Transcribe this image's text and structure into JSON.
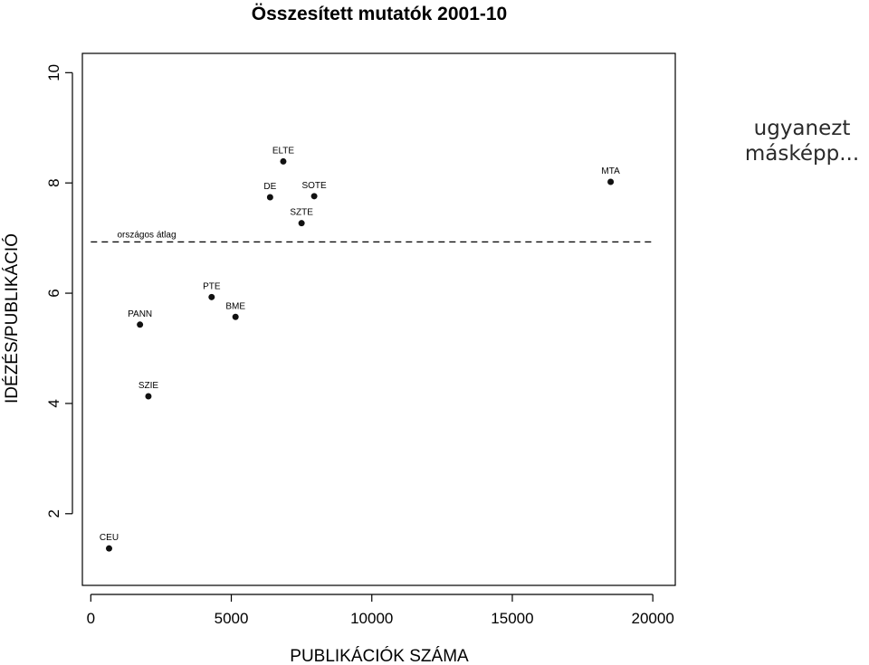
{
  "side_note": {
    "line1": "ugyanezt",
    "line2": "másképp..."
  },
  "chart_data": {
    "type": "scatter",
    "title": "Összesített mutatók 2001-10",
    "xlabel": "PUBLIKÁCIÓK SZÁMA",
    "ylabel": "IDÉZÉS/PUBLIKÁCIÓ",
    "xlim": [
      -300,
      20800
    ],
    "ylim": [
      0.7,
      10.35
    ],
    "xticks": [
      0,
      5000,
      10000,
      15000,
      20000
    ],
    "yticks": [
      2,
      4,
      6,
      8,
      10
    ],
    "grid": false,
    "points": [
      {
        "label": "CEU",
        "x": 650,
        "y": 1.37
      },
      {
        "label": "PANN",
        "x": 1750,
        "y": 5.43
      },
      {
        "label": "SZIE",
        "x": 2050,
        "y": 4.13
      },
      {
        "label": "PTE",
        "x": 4300,
        "y": 5.93
      },
      {
        "label": "BME",
        "x": 5150,
        "y": 5.57
      },
      {
        "label": "DE",
        "x": 6380,
        "y": 7.74
      },
      {
        "label": "ELTE",
        "x": 6850,
        "y": 8.39
      },
      {
        "label": "SZTE",
        "x": 7500,
        "y": 7.27
      },
      {
        "label": "SOTE",
        "x": 7950,
        "y": 7.76
      },
      {
        "label": "MTA",
        "x": 18500,
        "y": 8.02
      }
    ],
    "reference_line": {
      "label": "országos átlag",
      "y": 6.93,
      "x_from": 0,
      "x_to": 20000,
      "style": "dashed"
    },
    "colors": {
      "points": "#111111",
      "axis": "#000000"
    }
  }
}
